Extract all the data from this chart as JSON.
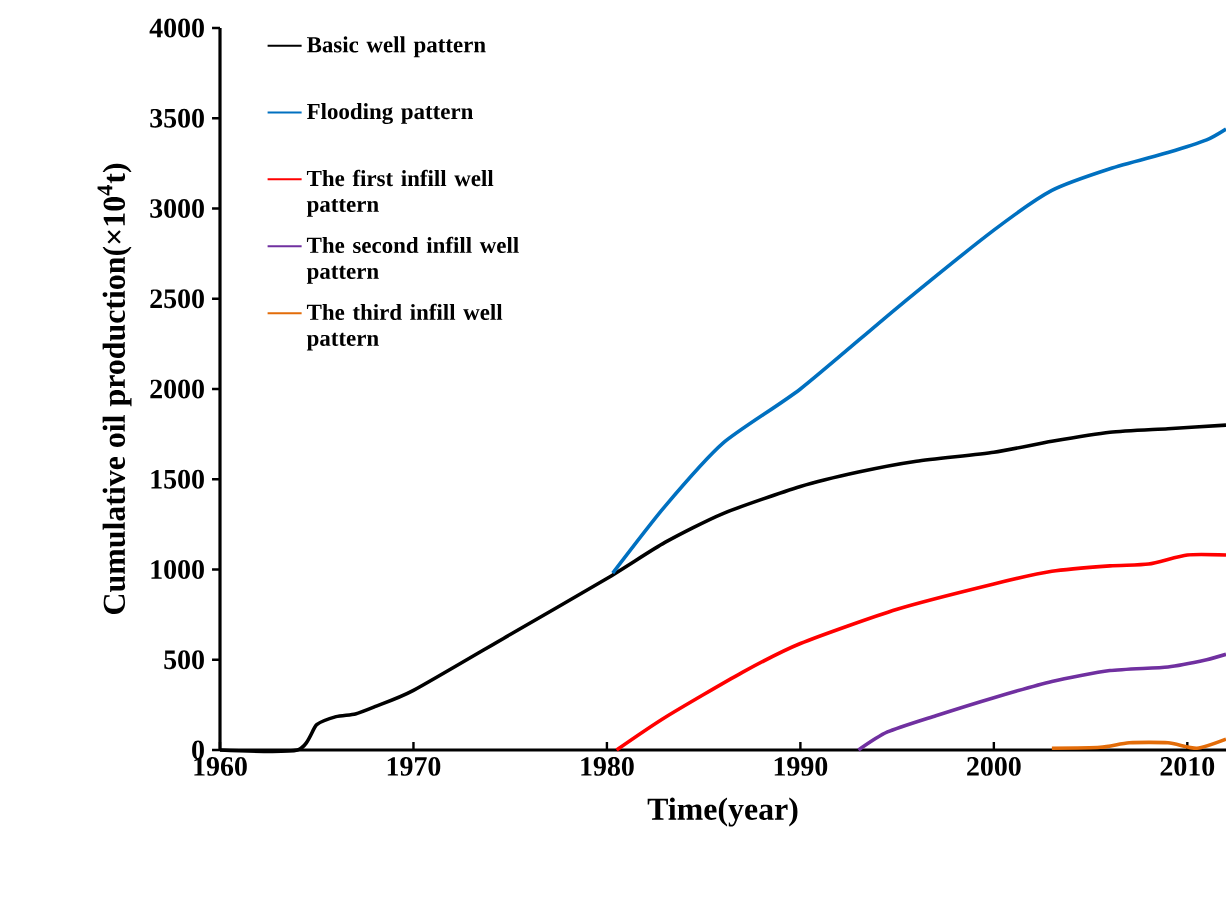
{
  "chart_data": {
    "type": "line",
    "xlabel": "Time(year)",
    "ylabel": "Cumulative oil production(×10$^{4}$t)",
    "xlim": [
      1960,
      2012
    ],
    "ylim": [
      0,
      4000
    ],
    "xticks": [
      1960,
      1970,
      1980,
      1990,
      2000,
      2010
    ],
    "yticks": [
      0,
      500,
      1000,
      1500,
      2000,
      2500,
      3000,
      3500,
      4000
    ],
    "legend": "top left",
    "series": [
      {
        "name": "Basic well pattern",
        "color": "#000000",
        "x": [
          1960,
          1964,
          1965,
          1966,
          1967,
          1968,
          1970,
          1975,
          1980,
          1983,
          1986,
          1990,
          1993,
          1996,
          2000,
          2003,
          2006,
          2009,
          2012
        ],
        "values": [
          0,
          0,
          140,
          185,
          200,
          240,
          330,
          640,
          950,
          1150,
          1310,
          1460,
          1540,
          1600,
          1650,
          1710,
          1760,
          1780,
          1800
        ]
      },
      {
        "name": "Flooding pattern",
        "color": "#0070c0",
        "x": [
          1980.3,
          1983,
          1986,
          1990,
          1995,
          2000,
          2003,
          2006,
          2009,
          2011,
          2012
        ],
        "values": [
          980,
          1350,
          1700,
          2000,
          2450,
          2880,
          3100,
          3220,
          3310,
          3380,
          3440
        ]
      },
      {
        "name": "The first infill well pattern",
        "color": "#ff0000",
        "x": [
          1980.5,
          1983,
          1987,
          1990,
          1995,
          2000,
          2003,
          2006,
          2008,
          2010,
          2012
        ],
        "values": [
          0,
          180,
          430,
          590,
          780,
          920,
          990,
          1020,
          1030,
          1080,
          1080
        ]
      },
      {
        "name": "The second infill well pattern",
        "color": "#7030a0",
        "x": [
          1993,
          1994.5,
          1997,
          2000,
          2003,
          2006,
          2009,
          2011,
          2012
        ],
        "values": [
          0,
          100,
          190,
          290,
          380,
          440,
          460,
          500,
          530
        ]
      },
      {
        "name": "The third infill well pattern",
        "color": "#e36c09",
        "x": [
          2003,
          2005.5,
          2007,
          2009,
          2010.5,
          2012
        ],
        "values": [
          10,
          15,
          40,
          40,
          10,
          60
        ]
      }
    ]
  }
}
